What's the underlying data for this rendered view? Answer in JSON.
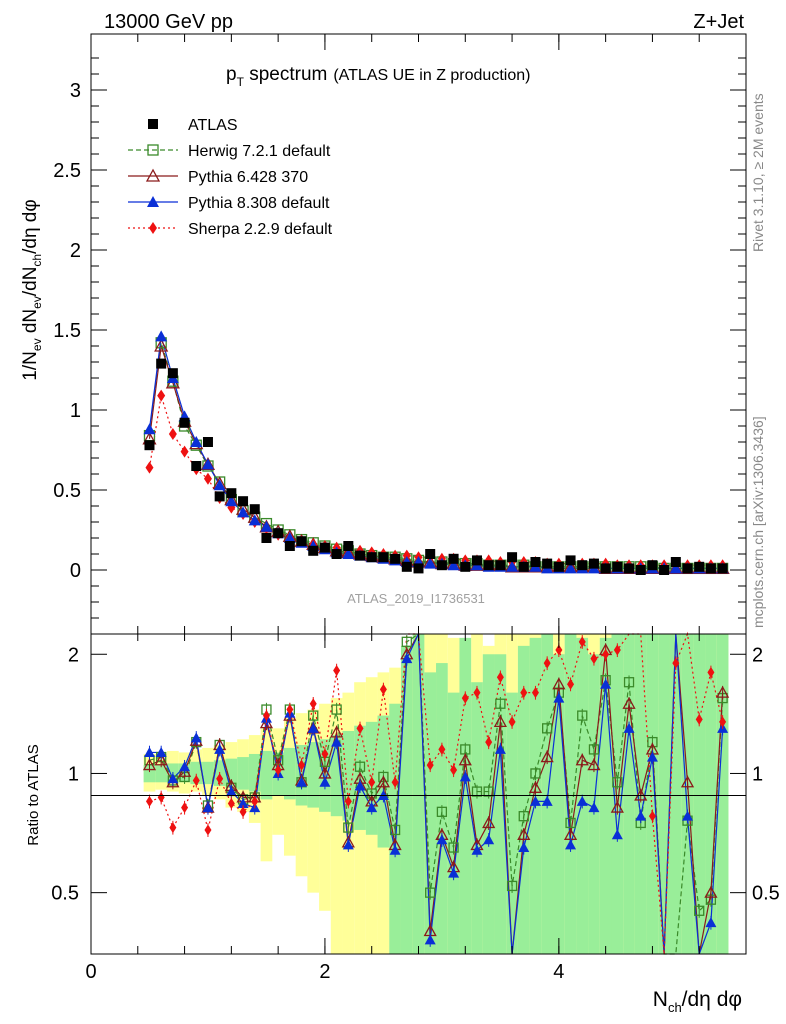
{
  "header": {
    "left": "13000 GeV pp",
    "right": "Z+Jet"
  },
  "side_labels": {
    "top": "Rivet 3.1.10, ≥ 2M events",
    "bottom": "mcplots.cern.ch [arXiv:1306.3436]"
  },
  "chart_data": {
    "type": "scatter",
    "title_main": "p",
    "title_sub": "T",
    "title_rest": " spectrum",
    "title_paren": "(ATLAS UE in Z production)",
    "analysis_tag": "ATLAS_2019_I1736531",
    "xlabel_main": "N",
    "xlabel_sub": "ch",
    "xlabel_rest": "/dη dφ",
    "ylabel": "1/N_ev dN_ev/dN_ch/dη dφ",
    "ylabel_parts": {
      "a": "1/N",
      "b": "ev",
      "c": " dN",
      "d": "ev",
      "e": "/dN",
      "f": "ch",
      "g": "/dη dφ"
    },
    "ratio_ylabel": "Ratio to ATLAS",
    "xlim": [
      0,
      5.6
    ],
    "ylim": [
      -0.4,
      3.35
    ],
    "ratio_ylim": [
      0.35,
      2.25
    ],
    "x_ticks": [
      "0",
      "2",
      "4"
    ],
    "y_ticks": [
      "0",
      "0.5",
      "1",
      "1.5",
      "2",
      "2.5",
      "3"
    ],
    "ratio_ticks": [
      "0.5",
      "1",
      "2"
    ],
    "legend_position": "top-left",
    "x": [
      0.5,
      0.6,
      0.7,
      0.8,
      0.9,
      1.0,
      1.1,
      1.2,
      1.3,
      1.4,
      1.5,
      1.6,
      1.7,
      1.8,
      1.9,
      2.0,
      2.1,
      2.2,
      2.3,
      2.4,
      2.5,
      2.6,
      2.7,
      2.8,
      2.9,
      3.0,
      3.1,
      3.2,
      3.3,
      3.4,
      3.5,
      3.6,
      3.7,
      3.8,
      3.9,
      4.0,
      4.1,
      4.2,
      4.3,
      4.4,
      4.5,
      4.6,
      4.7,
      4.8,
      4.9,
      5.0,
      5.1,
      5.2,
      5.3,
      5.4
    ],
    "series": [
      {
        "name": "ATLAS",
        "color": "#000000",
        "marker": "square",
        "values": [
          0.78,
          1.29,
          1.23,
          0.92,
          0.65,
          0.8,
          0.46,
          0.48,
          0.43,
          0.38,
          0.2,
          0.23,
          0.15,
          0.18,
          0.12,
          0.14,
          0.1,
          0.15,
          0.09,
          0.08,
          0.08,
          0.07,
          0.02,
          0.01,
          0.1,
          0.03,
          0.07,
          0.02,
          0.06,
          0.03,
          0.03,
          0.08,
          0.02,
          0.05,
          0.04,
          0.02,
          0.06,
          0.03,
          0.04,
          0.01,
          0.02,
          0.01,
          0.0,
          0.03,
          0.0,
          0.05,
          0.01,
          0.02,
          0.01,
          0.01
        ]
      },
      {
        "name": "Herwig 7.2.1 default",
        "color": "#3a8a2a",
        "marker": "open-square",
        "values": [
          0.84,
          1.42,
          1.18,
          0.9,
          0.78,
          0.65,
          0.55,
          0.44,
          0.37,
          0.33,
          0.29,
          0.25,
          0.22,
          0.19,
          0.17,
          0.15,
          0.13,
          0.12,
          0.1,
          0.09,
          0.08,
          0.08,
          0.07,
          0.06,
          0.05,
          0.05,
          0.04,
          0.04,
          0.04,
          0.03,
          0.03,
          0.03,
          0.03,
          0.02,
          0.02,
          0.02,
          0.02,
          0.02,
          0.02,
          0.02,
          0.02,
          0.02,
          0.02,
          0.02,
          0.01,
          0.01,
          0.01,
          0.01,
          0.01,
          0.01
        ]
      },
      {
        "name": "Pythia 6.428 370",
        "color": "#8b1a1a",
        "marker": "open-triangle",
        "values": [
          0.82,
          1.4,
          1.17,
          0.93,
          0.79,
          0.66,
          0.54,
          0.44,
          0.38,
          0.33,
          0.27,
          0.24,
          0.21,
          0.18,
          0.16,
          0.14,
          0.12,
          0.11,
          0.1,
          0.09,
          0.08,
          0.07,
          0.06,
          0.05,
          0.05,
          0.04,
          0.04,
          0.03,
          0.03,
          0.03,
          0.03,
          0.02,
          0.02,
          0.02,
          0.02,
          0.02,
          0.02,
          0.02,
          0.02,
          0.01,
          0.01,
          0.01,
          0.01,
          0.01,
          0.01,
          0.01,
          0.01,
          0.01,
          0.01,
          0.01
        ]
      },
      {
        "name": "Pythia 8.308 default",
        "color": "#0a2fd6",
        "marker": "triangle",
        "values": [
          0.88,
          1.46,
          1.2,
          0.96,
          0.8,
          0.66,
          0.53,
          0.43,
          0.36,
          0.31,
          0.27,
          0.23,
          0.2,
          0.17,
          0.15,
          0.13,
          0.11,
          0.1,
          0.09,
          0.08,
          0.07,
          0.06,
          0.05,
          0.05,
          0.04,
          0.04,
          0.03,
          0.03,
          0.03,
          0.02,
          0.02,
          0.02,
          0.02,
          0.02,
          0.01,
          0.01,
          0.01,
          0.01,
          0.01,
          0.01,
          0.01,
          0.01,
          0.01,
          0.01,
          0.01,
          0.01,
          0.01,
          0.01,
          0.01,
          0.01
        ]
      },
      {
        "name": "Sherpa 2.2.9 default",
        "color": "#ee1111",
        "marker": "diamond",
        "values": [
          0.64,
          1.09,
          0.85,
          0.74,
          0.63,
          0.57,
          0.45,
          0.39,
          0.35,
          0.3,
          0.26,
          0.22,
          0.2,
          0.18,
          0.16,
          0.15,
          0.14,
          0.13,
          0.12,
          0.11,
          0.1,
          0.09,
          0.09,
          0.08,
          0.08,
          0.07,
          0.07,
          0.06,
          0.06,
          0.06,
          0.05,
          0.05,
          0.05,
          0.05,
          0.04,
          0.04,
          0.04,
          0.04,
          0.04,
          0.04,
          0.03,
          0.03,
          0.03,
          0.03,
          0.03,
          0.03,
          0.03,
          0.03,
          0.03,
          0.03
        ]
      }
    ],
    "ratio": {
      "yellow_band": [
        [
          0.9,
          1.12
        ],
        [
          0.91,
          1.12
        ],
        [
          0.9,
          1.14
        ],
        [
          0.89,
          1.13
        ],
        [
          0.9,
          1.15
        ],
        [
          0.88,
          1.16
        ],
        [
          0.86,
          1.18
        ],
        [
          0.82,
          1.2
        ],
        [
          0.8,
          1.22
        ],
        [
          0.75,
          1.25
        ],
        [
          0.6,
          1.3
        ],
        [
          0.7,
          1.3
        ],
        [
          0.62,
          1.38
        ],
        [
          0.55,
          1.42
        ],
        [
          0.5,
          1.45
        ],
        [
          0.45,
          1.5
        ],
        [
          0.35,
          1.55
        ],
        [
          0.35,
          1.6
        ],
        [
          0.35,
          1.7
        ],
        [
          0.35,
          1.75
        ],
        [
          0.35,
          1.8
        ],
        [
          0.35,
          1.85
        ],
        [
          0.35,
          2.1
        ],
        [
          0.35,
          2.25
        ],
        [
          0.35,
          2.25
        ],
        [
          0.35,
          2.25
        ],
        [
          0.35,
          2.2
        ],
        [
          0.35,
          2.0
        ],
        [
          0.35,
          2.25
        ],
        [
          0.35,
          2.1
        ],
        [
          0.35,
          2.25
        ],
        [
          0.35,
          2.25
        ],
        [
          0.35,
          2.25
        ],
        [
          0.35,
          2.25
        ],
        [
          0.35,
          2.25
        ],
        [
          0.35,
          2.25
        ],
        [
          0.35,
          2.25
        ],
        [
          0.35,
          2.25
        ],
        [
          0.35,
          2.25
        ],
        [
          0.35,
          2.25
        ],
        [
          0.35,
          2.25
        ],
        [
          0.35,
          2.25
        ],
        [
          0.35,
          2.25
        ],
        [
          0.35,
          2.25
        ],
        [
          0.35,
          2.25
        ],
        [
          0.35,
          2.25
        ],
        [
          0.35,
          2.25
        ],
        [
          0.35,
          2.25
        ],
        [
          0.35,
          2.25
        ],
        [
          0.35,
          2.25
        ]
      ],
      "green_band": [
        [
          0.95,
          1.05
        ],
        [
          0.95,
          1.05
        ],
        [
          0.95,
          1.06
        ],
        [
          0.95,
          1.06
        ],
        [
          0.94,
          1.07
        ],
        [
          0.94,
          1.07
        ],
        [
          0.93,
          1.08
        ],
        [
          0.92,
          1.09
        ],
        [
          0.91,
          1.1
        ],
        [
          0.9,
          1.12
        ],
        [
          0.86,
          1.14
        ],
        [
          0.88,
          1.13
        ],
        [
          0.86,
          1.16
        ],
        [
          0.83,
          1.18
        ],
        [
          0.82,
          1.2
        ],
        [
          0.8,
          1.22
        ],
        [
          0.78,
          1.25
        ],
        [
          0.76,
          1.28
        ],
        [
          0.72,
          1.32
        ],
        [
          0.7,
          1.35
        ],
        [
          0.65,
          1.4
        ],
        [
          0.35,
          1.5
        ],
        [
          0.35,
          2.1
        ],
        [
          0.35,
          2.25
        ],
        [
          0.35,
          1.8
        ],
        [
          0.35,
          1.9
        ],
        [
          0.35,
          1.6
        ],
        [
          0.35,
          2.2
        ],
        [
          0.35,
          1.7
        ],
        [
          0.35,
          2.0
        ],
        [
          0.35,
          2.0
        ],
        [
          0.35,
          1.6
        ],
        [
          0.35,
          2.1
        ],
        [
          0.35,
          2.2
        ],
        [
          0.35,
          2.25
        ],
        [
          0.35,
          2.0
        ],
        [
          0.35,
          2.25
        ],
        [
          0.35,
          2.2
        ],
        [
          0.35,
          2.0
        ],
        [
          0.35,
          2.2
        ],
        [
          0.35,
          2.25
        ],
        [
          0.35,
          2.25
        ],
        [
          0.35,
          2.25
        ],
        [
          0.35,
          2.25
        ],
        [
          0.35,
          2.25
        ],
        [
          0.35,
          2.25
        ],
        [
          0.35,
          2.25
        ],
        [
          0.35,
          2.25
        ],
        [
          0.35,
          2.25
        ],
        [
          0.35,
          2.25
        ]
      ],
      "series": [
        {
          "name": "Herwig 7.2.1 default",
          "values": [
            1.08,
            1.1,
            0.96,
            0.98,
            1.2,
            0.83,
            1.18,
            0.92,
            0.86,
            0.87,
            1.45,
            1.08,
            1.45,
            0.95,
            1.4,
            1.07,
            1.45,
            0.73,
            1.04,
            0.89,
            0.98,
            0.72,
            2.15,
            2.5,
            0.5,
            0.8,
            0.65,
            1.15,
            0.9,
            0.9,
            1.5,
            0.52,
            0.78,
            1.0,
            1.3,
            1.6,
            0.75,
            1.4,
            1.15,
            1.72,
            0.95,
            1.7,
            0.75,
            1.2,
            0.35,
            0.35,
            0.76,
            0.45,
            0.48,
            1.55
          ]
        },
        {
          "name": "Pythia 6.428 370",
          "values": [
            1.05,
            1.08,
            0.95,
            1.01,
            1.21,
            0.82,
            1.18,
            0.93,
            0.87,
            0.87,
            1.34,
            1.05,
            1.4,
            0.96,
            1.3,
            1.0,
            1.27,
            0.67,
            0.97,
            0.85,
            0.95,
            0.66,
            2.0,
            2.5,
            0.4,
            0.7,
            0.58,
            1.08,
            0.66,
            0.75,
            1.35,
            0.35,
            0.7,
            0.92,
            1.1,
            1.68,
            0.7,
            1.08,
            1.05,
            2.05,
            0.82,
            1.5,
            0.88,
            1.15,
            0.35,
            2.5,
            0.95,
            0.35,
            0.5,
            1.6
          ]
        },
        {
          "name": "Pythia 8.308 default",
          "values": [
            1.13,
            1.13,
            0.97,
            1.04,
            1.23,
            0.82,
            1.15,
            0.9,
            0.84,
            0.82,
            1.38,
            1.0,
            1.42,
            0.95,
            1.3,
            0.95,
            1.2,
            0.66,
            0.93,
            0.82,
            0.88,
            0.64,
            1.95,
            2.5,
            0.38,
            0.68,
            0.56,
            0.98,
            0.64,
            0.68,
            1.15,
            0.35,
            0.65,
            0.85,
            0.85,
            1.55,
            0.66,
            0.85,
            0.82,
            1.68,
            0.7,
            1.3,
            0.78,
            1.1,
            0.35,
            2.5,
            0.78,
            0.35,
            0.42,
            1.3
          ]
        },
        {
          "name": "Sherpa 2.2.9 default",
          "values": [
            0.85,
            0.87,
            0.73,
            0.82,
            0.96,
            0.72,
            0.97,
            0.84,
            0.8,
            0.85,
            1.4,
            1.02,
            1.45,
            1.05,
            1.5,
            1.12,
            1.82,
            0.85,
            1.3,
            0.95,
            1.63,
            0.95,
            2.3,
            2.5,
            1.05,
            1.15,
            1.02,
            1.55,
            1.6,
            1.2,
            1.75,
            1.35,
            1.6,
            1.6,
            1.9,
            2.05,
            1.68,
            2.15,
            1.95,
            2.0,
            2.05,
            2.45,
            2.4,
            0.78,
            0.35,
            1.9,
            2.35,
            1.37,
            1.8,
            1.35
          ]
        }
      ]
    }
  }
}
